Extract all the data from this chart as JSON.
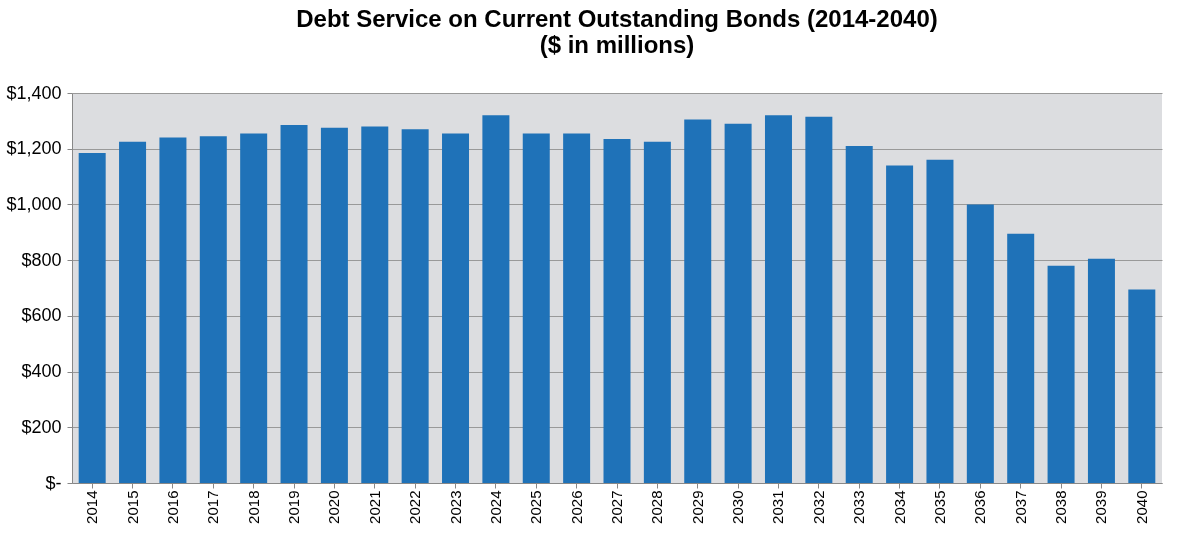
{
  "chart_data": {
    "type": "bar",
    "title": [
      "Debt Service on Current Outstanding Bonds (2014-2040)",
      "($ in millions)"
    ],
    "categories": [
      "2014",
      "2015",
      "2016",
      "2017",
      "2018",
      "2019",
      "2020",
      "2021",
      "2022",
      "2023",
      "2024",
      "2025",
      "2026",
      "2027",
      "2028",
      "2029",
      "2030",
      "2031",
      "2032",
      "2033",
      "2034",
      "2035",
      "2036",
      "2037",
      "2038",
      "2039",
      "2040"
    ],
    "values": [
      1185,
      1225,
      1240,
      1245,
      1255,
      1285,
      1275,
      1280,
      1270,
      1255,
      1320,
      1255,
      1255,
      1235,
      1225,
      1305,
      1290,
      1320,
      1315,
      1210,
      1140,
      1160,
      1000,
      895,
      780,
      805,
      695
    ],
    "color": "#1f72b8",
    "ylim": [
      0,
      1400
    ],
    "yticks": [
      {
        "value": 0,
        "label": "$-"
      },
      {
        "value": 200,
        "label": "$200"
      },
      {
        "value": 400,
        "label": "$400"
      },
      {
        "value": 600,
        "label": "$600"
      },
      {
        "value": 800,
        "label": "$800"
      },
      {
        "value": 1000,
        "label": "$1,000"
      },
      {
        "value": 1200,
        "label": "$1,200"
      },
      {
        "value": 1400,
        "label": "$1,400"
      }
    ],
    "grid": "y"
  }
}
